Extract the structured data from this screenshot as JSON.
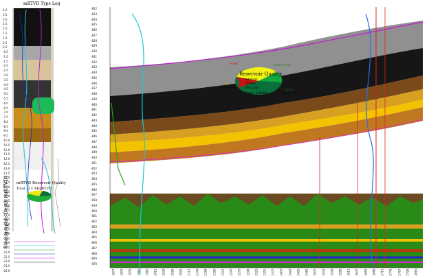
{
  "type_log": {
    "title": "mRTVD Type Log",
    "y_axis_label": "Stratigraphic Depth (mRTVD)",
    "left_ticks": [
      "4.0",
      "3.5",
      "3.0",
      "2.5",
      "2.0",
      "1.5",
      "1.0",
      "0.5",
      "0.0",
      "-0.5",
      "-1.0",
      "-1.5",
      "-2.0",
      "-2.5",
      "-3.0",
      "-3.5",
      "-4.0",
      "-4.5",
      "-5.0",
      "-5.5",
      "-6.0",
      "-6.5",
      "-7.0",
      "-7.5",
      "-8.0",
      "-8.5",
      "-9.0",
      "-9.5",
      "-10.0",
      "-10.5",
      "-11.0",
      "-11.5",
      "-12.0",
      "-12.5",
      "-13.0",
      "-13.5",
      "-14.0",
      "-14.5",
      "-15.0",
      "-15.5",
      "-16.0",
      "-16.5",
      "-17.0",
      "-17.5",
      "-18.0",
      "-18.5",
      "-19.0",
      "-19.5",
      "-20.0",
      "-20.5",
      "-21.0",
      "-21.5",
      "-22.0",
      "-22.5",
      "-23.0",
      "-23.5",
      "-24.0"
    ],
    "reservoir_quality_title": "mRTVD Reservoir Quality",
    "reservoir_quality_total": "Total : 12.34mRTVD"
  },
  "main_plot": {
    "x_ticks": [
      "1877",
      "1903",
      "1935",
      "1961",
      "1987",
      "2013",
      "2039",
      "2065",
      "2091",
      "2117",
      "2143",
      "2169",
      "2195",
      "2221",
      "2247",
      "2273",
      "2299",
      "2325",
      "2351",
      "2377",
      "2403",
      "2429",
      "2455",
      "2481",
      "2507",
      "2533",
      "2559",
      "2585",
      "2611",
      "2637",
      "2663",
      "2689",
      "2715",
      "2741",
      "2767",
      "2793",
      "2819"
    ],
    "y_ticks": [
      "-822",
      "-823",
      "-824",
      "-825",
      "-826",
      "-827",
      "-828",
      "-829",
      "-830",
      "-831",
      "-832",
      "-833",
      "-834",
      "-835",
      "-836",
      "-837",
      "-838",
      "-839",
      "-840",
      "-841",
      "-842",
      "-843",
      "-844",
      "-845",
      "-846",
      "-847",
      "-848",
      "-849",
      "-850",
      "-851",
      "-852",
      "-853",
      "-854",
      "-855",
      "-856",
      "-857",
      "-858",
      "-859",
      "-860",
      "-861",
      "-862",
      "-863",
      "-864",
      "-865",
      "-866",
      "-867",
      "-868",
      "-869",
      "-870"
    ]
  },
  "reservoir_quality": {
    "title": "Reservoir Quality",
    "interval_label": "Interval",
    "interval_values": [
      "2089m",
      "3912.8m"
    ],
    "total": "Total: 1843m",
    "poor_label": "POOR",
    "fair_label": "FAIR",
    "good_label": "GOOD",
    "very_good_label": "VERY GOOD",
    "fair_detail": "67m | 36.4%",
    "good_detail": "38m | 20.5%",
    "colors": {
      "fair": "#f2f214",
      "good": "#0b6f3a",
      "poor": "#c81414",
      "very_good": "#14a83c"
    }
  },
  "colors": {
    "accent_cyan": "#19c8d8",
    "accent_magenta": "#e020e0",
    "gamma_green": "#2aa41a"
  }
}
